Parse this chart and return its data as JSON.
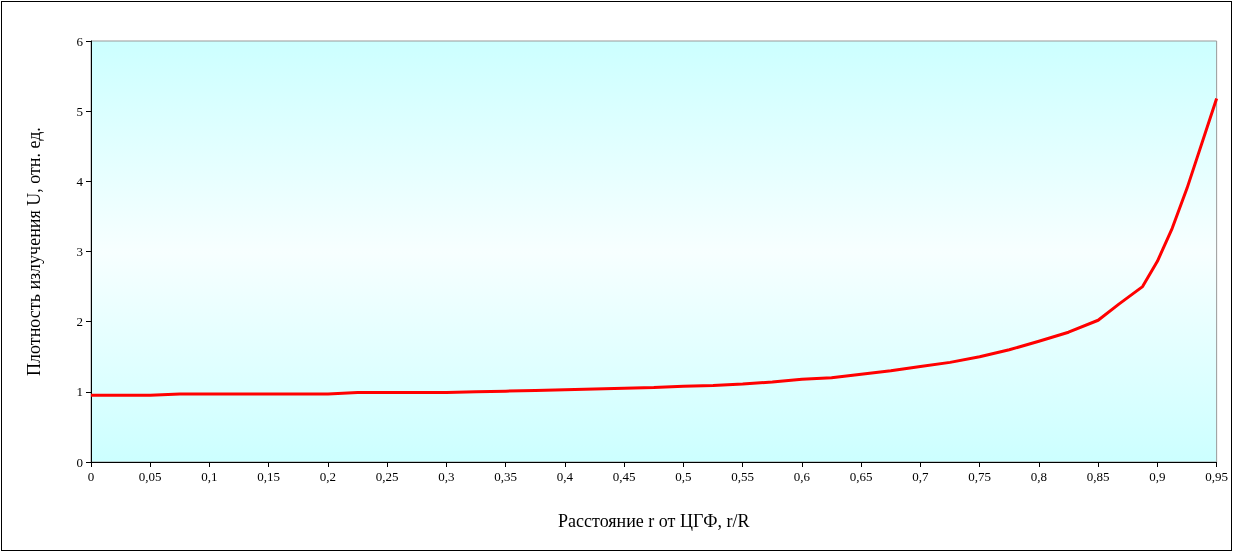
{
  "chart_data": {
    "type": "line",
    "xlabel": "Расстояние r от ЦГФ, r/R",
    "ylabel": "Плотность излучения U, отн. ед.",
    "x": [
      0,
      0.025,
      0.05,
      0.075,
      0.1,
      0.125,
      0.15,
      0.175,
      0.2,
      0.225,
      0.25,
      0.275,
      0.3,
      0.325,
      0.35,
      0.375,
      0.4,
      0.425,
      0.45,
      0.475,
      0.5,
      0.525,
      0.55,
      0.575,
      0.6,
      0.625,
      0.65,
      0.675,
      0.7,
      0.725,
      0.75,
      0.775,
      0.8,
      0.825,
      0.85,
      0.8675,
      0.8875,
      0.9,
      0.9125,
      0.925,
      0.95
    ],
    "series": [
      {
        "color": "#ff0000",
        "values": [
          0.95,
          0.95,
          0.95,
          0.97,
          0.97,
          0.97,
          0.97,
          0.97,
          0.97,
          0.99,
          0.99,
          0.99,
          0.99,
          1.0,
          1.01,
          1.02,
          1.03,
          1.04,
          1.05,
          1.06,
          1.08,
          1.09,
          1.11,
          1.14,
          1.18,
          1.2,
          1.25,
          1.3,
          1.36,
          1.42,
          1.5,
          1.6,
          1.72,
          1.85,
          2.02,
          2.25,
          2.5,
          2.86,
          3.33,
          3.9,
          5.18
        ]
      }
    ],
    "xlim": [
      0,
      0.95
    ],
    "xticks": [
      {
        "value": 0,
        "label": "0"
      },
      {
        "value": 0.05,
        "label": "0,05"
      },
      {
        "value": 0.1,
        "label": "0,1"
      },
      {
        "value": 0.15,
        "label": "0,15"
      },
      {
        "value": 0.2,
        "label": "0,2"
      },
      {
        "value": 0.25,
        "label": "0,25"
      },
      {
        "value": 0.3,
        "label": "0,3"
      },
      {
        "value": 0.35,
        "label": "0,35"
      },
      {
        "value": 0.4,
        "label": "0,4"
      },
      {
        "value": 0.45,
        "label": "0,45"
      },
      {
        "value": 0.5,
        "label": "0,5"
      },
      {
        "value": 0.55,
        "label": "0,55"
      },
      {
        "value": 0.6,
        "label": "0,6"
      },
      {
        "value": 0.65,
        "label": "0,65"
      },
      {
        "value": 0.7,
        "label": "0,7"
      },
      {
        "value": 0.75,
        "label": "0,75"
      },
      {
        "value": 0.8,
        "label": "0,8"
      },
      {
        "value": 0.85,
        "label": "0,85"
      },
      {
        "value": 0.9,
        "label": "0,9"
      },
      {
        "value": 0.95,
        "label": "0,95"
      }
    ],
    "ylim": [
      0,
      6
    ],
    "yticks": [
      0,
      1,
      2,
      3,
      4,
      5,
      6
    ],
    "grid": false,
    "marker": "none",
    "line_style": "solid"
  }
}
